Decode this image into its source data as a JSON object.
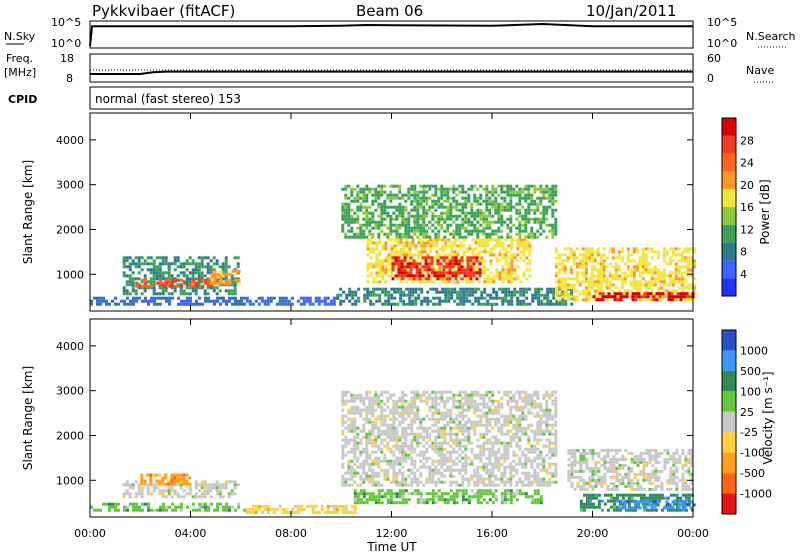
{
  "header": {
    "station": "Pykkvibaer (fitACF)",
    "beam": "Beam 06",
    "date": "10/Jan/2011"
  },
  "top_panels": {
    "nsky_label": "N.Sky",
    "nsky_ticks": [
      "10^5",
      "10^0"
    ],
    "nsearch_label": "N.Search",
    "nsearch_ticks": [
      "10^5",
      "10^0"
    ],
    "freq_label": "Freq.",
    "freq_unit": "[MHz]",
    "freq_ticks": [
      "18",
      "8"
    ],
    "nave_label": "Nave",
    "nave_ticks": [
      "60",
      "0"
    ],
    "cpid_label": "CPID",
    "cpid_text": "normal (fast stereo) 153"
  },
  "colors": {
    "power_scale": [
      "#1e32ff",
      "#3c64ff",
      "#2e7a8c",
      "#3aa05a",
      "#8cc83c",
      "#f0e63c",
      "#ff9628",
      "#ff641e",
      "#f03c1e",
      "#dc0000"
    ],
    "velocity_scale": [
      "#2850c8",
      "#3c96ff",
      "#2e8b57",
      "#64c83c",
      "#c8c8c8",
      "#ffd23c",
      "#ffa01e",
      "#ff6414",
      "#e61414"
    ]
  },
  "chart_data": [
    {
      "type": "line",
      "title": "N.Sky / N.Search",
      "x_range": [
        "00:00",
        "24:00"
      ],
      "ylabel_left": "N.Sky",
      "ylabel_right": "N.Search",
      "yscale": "log",
      "y_ticks": [
        "10^0",
        "10^5"
      ],
      "series": [
        {
          "name": "N.Sky",
          "x": [
            "00:00",
            "00:05",
            "04:00",
            "08:00",
            "10:00",
            "11:00",
            "12:00",
            "16:00",
            "18:00",
            "20:00",
            "24:00"
          ],
          "values": [
            1,
            30000,
            30000,
            30000,
            40000,
            60000,
            50000,
            40000,
            100000,
            30000,
            30000
          ]
        }
      ]
    },
    {
      "type": "line",
      "title": "Freq. / Nave",
      "x_range": [
        "00:00",
        "24:00"
      ],
      "ylabel_left": "Freq. [MHz]",
      "ylabel_right": "Nave",
      "ylim_left": [
        8,
        18
      ],
      "ylim_right": [
        0,
        60
      ],
      "series": [
        {
          "name": "Freq.",
          "x": [
            "00:00",
            "02:00",
            "02:30",
            "03:00",
            "24:00"
          ],
          "values": [
            10.5,
            10.5,
            11.2,
            11.5,
            11.5
          ]
        },
        {
          "name": "Nave",
          "x": [
            "00:00",
            "24:00"
          ],
          "values": [
            20,
            20
          ]
        }
      ]
    },
    {
      "type": "heatmap",
      "title": "Power",
      "xlabel": "Time UT",
      "ylabel": "Slant Range [km]",
      "x_ticks": [
        "00:00",
        "04:00",
        "08:00",
        "12:00",
        "16:00",
        "20:00",
        "00:00"
      ],
      "y_ticks": [
        1000,
        2000,
        3000,
        4000
      ],
      "ylim": [
        180,
        4600
      ],
      "x_range_hours": [
        0,
        24
      ],
      "colorbar": {
        "label": "Power [dB]",
        "ticks": [
          4,
          8,
          12,
          16,
          20,
          24,
          28
        ],
        "range": [
          0,
          32
        ]
      },
      "regions": [
        {
          "t": [
            0,
            6.2
          ],
          "r": [
            300,
            500
          ],
          "value": 6
        },
        {
          "t": [
            1.3,
            5.9
          ],
          "r": [
            550,
            1400
          ],
          "value": 10
        },
        {
          "t": [
            1.8,
            4.8
          ],
          "r": [
            700,
            900
          ],
          "value": 26
        },
        {
          "t": [
            4.8,
            5.9
          ],
          "r": [
            800,
            1100
          ],
          "value": 20
        },
        {
          "t": [
            6.2,
            9.8
          ],
          "r": [
            300,
            500
          ],
          "value": 5
        },
        {
          "t": [
            9.8,
            19.2
          ],
          "r": [
            300,
            700
          ],
          "value": 9
        },
        {
          "t": [
            10.0,
            18.5
          ],
          "r": [
            1800,
            3000
          ],
          "value": 12
        },
        {
          "t": [
            11.0,
            17.5
          ],
          "r": [
            800,
            1800
          ],
          "value": 18
        },
        {
          "t": [
            12.0,
            15.5
          ],
          "r": [
            900,
            1400
          ],
          "value": 28
        },
        {
          "t": [
            18.5,
            24
          ],
          "r": [
            400,
            1600
          ],
          "value": 18
        },
        {
          "t": [
            20.0,
            24
          ],
          "r": [
            400,
            600
          ],
          "value": 30
        }
      ]
    },
    {
      "type": "heatmap",
      "title": "Velocity",
      "xlabel": "Time UT",
      "ylabel": "Slant Range [km]",
      "x_ticks": [
        "00:00",
        "04:00",
        "08:00",
        "12:00",
        "16:00",
        "20:00",
        "00:00"
      ],
      "y_ticks": [
        1000,
        2000,
        3000,
        4000
      ],
      "ylim": [
        180,
        4600
      ],
      "x_range_hours": [
        0,
        24
      ],
      "colorbar": {
        "label": "Velocity [m s⁻¹]",
        "ticks": [
          "1000",
          "500",
          "100",
          "25",
          "-25",
          "-100",
          "-500",
          "-1000"
        ]
      },
      "regions": [
        {
          "t": [
            0,
            6.2
          ],
          "r": [
            300,
            500
          ],
          "value": 60
        },
        {
          "t": [
            1.3,
            5.9
          ],
          "r": [
            600,
            1000
          ],
          "value": 0
        },
        {
          "t": [
            2.0,
            4.0
          ],
          "r": [
            900,
            1150
          ],
          "value": -300
        },
        {
          "t": [
            6.2,
            10.5
          ],
          "r": [
            300,
            450
          ],
          "value": -60
        },
        {
          "t": [
            10.0,
            18.5
          ],
          "r": [
            900,
            3000
          ],
          "value": 0
        },
        {
          "t": [
            10.5,
            18.0
          ],
          "r": [
            500,
            800
          ],
          "value": 60
        },
        {
          "t": [
            19.0,
            24
          ],
          "r": [
            800,
            1700
          ],
          "value": 0
        },
        {
          "t": [
            19.5,
            24
          ],
          "r": [
            350,
            700
          ],
          "value": 300
        },
        {
          "t": [
            21.0,
            24
          ],
          "r": [
            400,
            550
          ],
          "value": 800
        }
      ]
    }
  ]
}
